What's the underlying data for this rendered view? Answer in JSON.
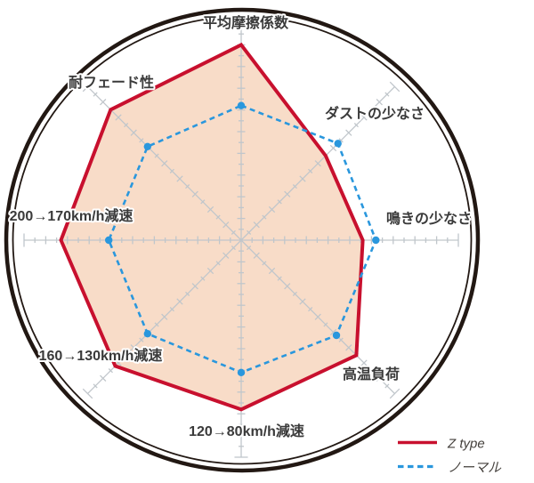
{
  "chart_data": {
    "type": "radar",
    "description": "Brake pad performance comparison radar chart with 8 axes inside a double-ring circle",
    "axes": [
      {
        "label": "平均摩擦係数",
        "angle_deg": 90
      },
      {
        "label": "ダストの少なさ",
        "angle_deg": 45
      },
      {
        "label": "鳴きの少なさ",
        "angle_deg": 0
      },
      {
        "label": "高温負荷",
        "angle_deg": -45
      },
      {
        "label": "120→80km/h減速",
        "angle_deg": 270
      },
      {
        "label": "160→130km/h減速",
        "angle_deg": 225
      },
      {
        "label": "200→170km/h減速",
        "angle_deg": 180
      },
      {
        "label": "耐フェード性",
        "angle_deg": 135
      }
    ],
    "scale": {
      "min": 0,
      "max": 10,
      "minor_tick": 0.5,
      "major_tick": 1,
      "gridlines": "ticks-only"
    },
    "series": [
      {
        "name": "Z type",
        "line_style": "solid",
        "color": "#c8102e",
        "area_fill": "#f8dcc8",
        "values": [
          9.0,
          5.5,
          5.6,
          7.5,
          7.8,
          8.2,
          8.3,
          8.5
        ]
      },
      {
        "name": "ノーマル",
        "line_style": "dashed",
        "color": "#2a97dd",
        "area_fill": null,
        "values": [
          6.2,
          6.3,
          6.2,
          6.2,
          6.1,
          6.1,
          6.1,
          6.1
        ]
      }
    ],
    "legend_position": "bottom-right"
  },
  "colors": {
    "ring": "#221813",
    "axis_gray": "#c0c6cb",
    "label_text": "#3a3a3a",
    "legend_text": "#44403c",
    "z_type_red": "#c8102e",
    "z_type_fill": "#f8dcc8",
    "normal_blue": "#2a97dd",
    "background": "#ffffff"
  }
}
